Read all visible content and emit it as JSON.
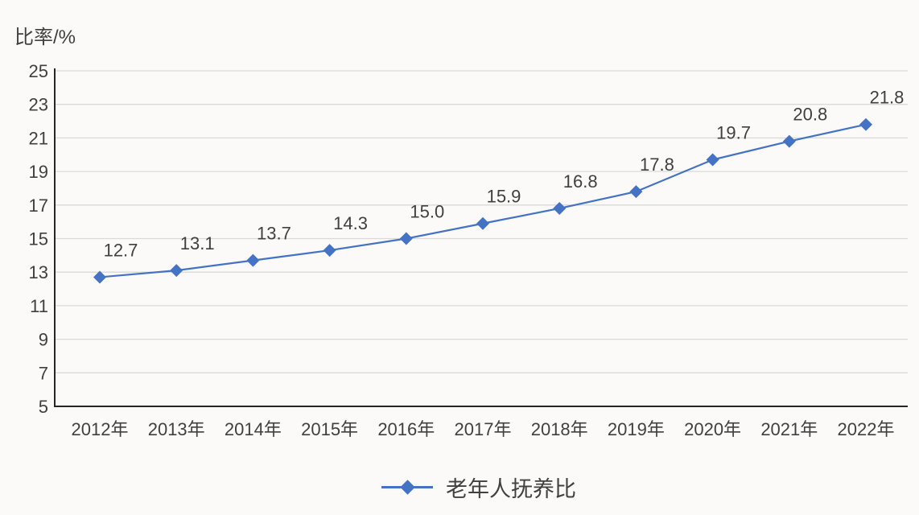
{
  "chart_data": {
    "type": "line",
    "title": "",
    "ylabel": "比率/%",
    "xlabel": "",
    "categories": [
      "2012年",
      "2013年",
      "2014年",
      "2015年",
      "2016年",
      "2017年",
      "2018年",
      "2019年",
      "2020年",
      "2021年",
      "2022年"
    ],
    "series": [
      {
        "name": "老年人抚养比",
        "values": [
          12.7,
          13.1,
          13.7,
          14.3,
          15.0,
          15.9,
          16.8,
          17.8,
          19.7,
          20.8,
          21.8
        ],
        "point_labels": [
          "12.7",
          "13.1",
          "13.7",
          "14.3",
          "15.0",
          "15.9",
          "16.8",
          "17.8",
          "19.7",
          "20.8",
          "21.8"
        ]
      }
    ],
    "ylim": [
      5,
      25
    ],
    "y_ticks": [
      25,
      23,
      21,
      19,
      17,
      15,
      13,
      11,
      9,
      7,
      5
    ],
    "grid": "horizontal",
    "legend_position": "bottom",
    "marker": "diamond",
    "colors": {
      "series": "#4472C4",
      "gridline": "#D9D9D9",
      "axis": "#262626",
      "text": "#404040"
    }
  }
}
